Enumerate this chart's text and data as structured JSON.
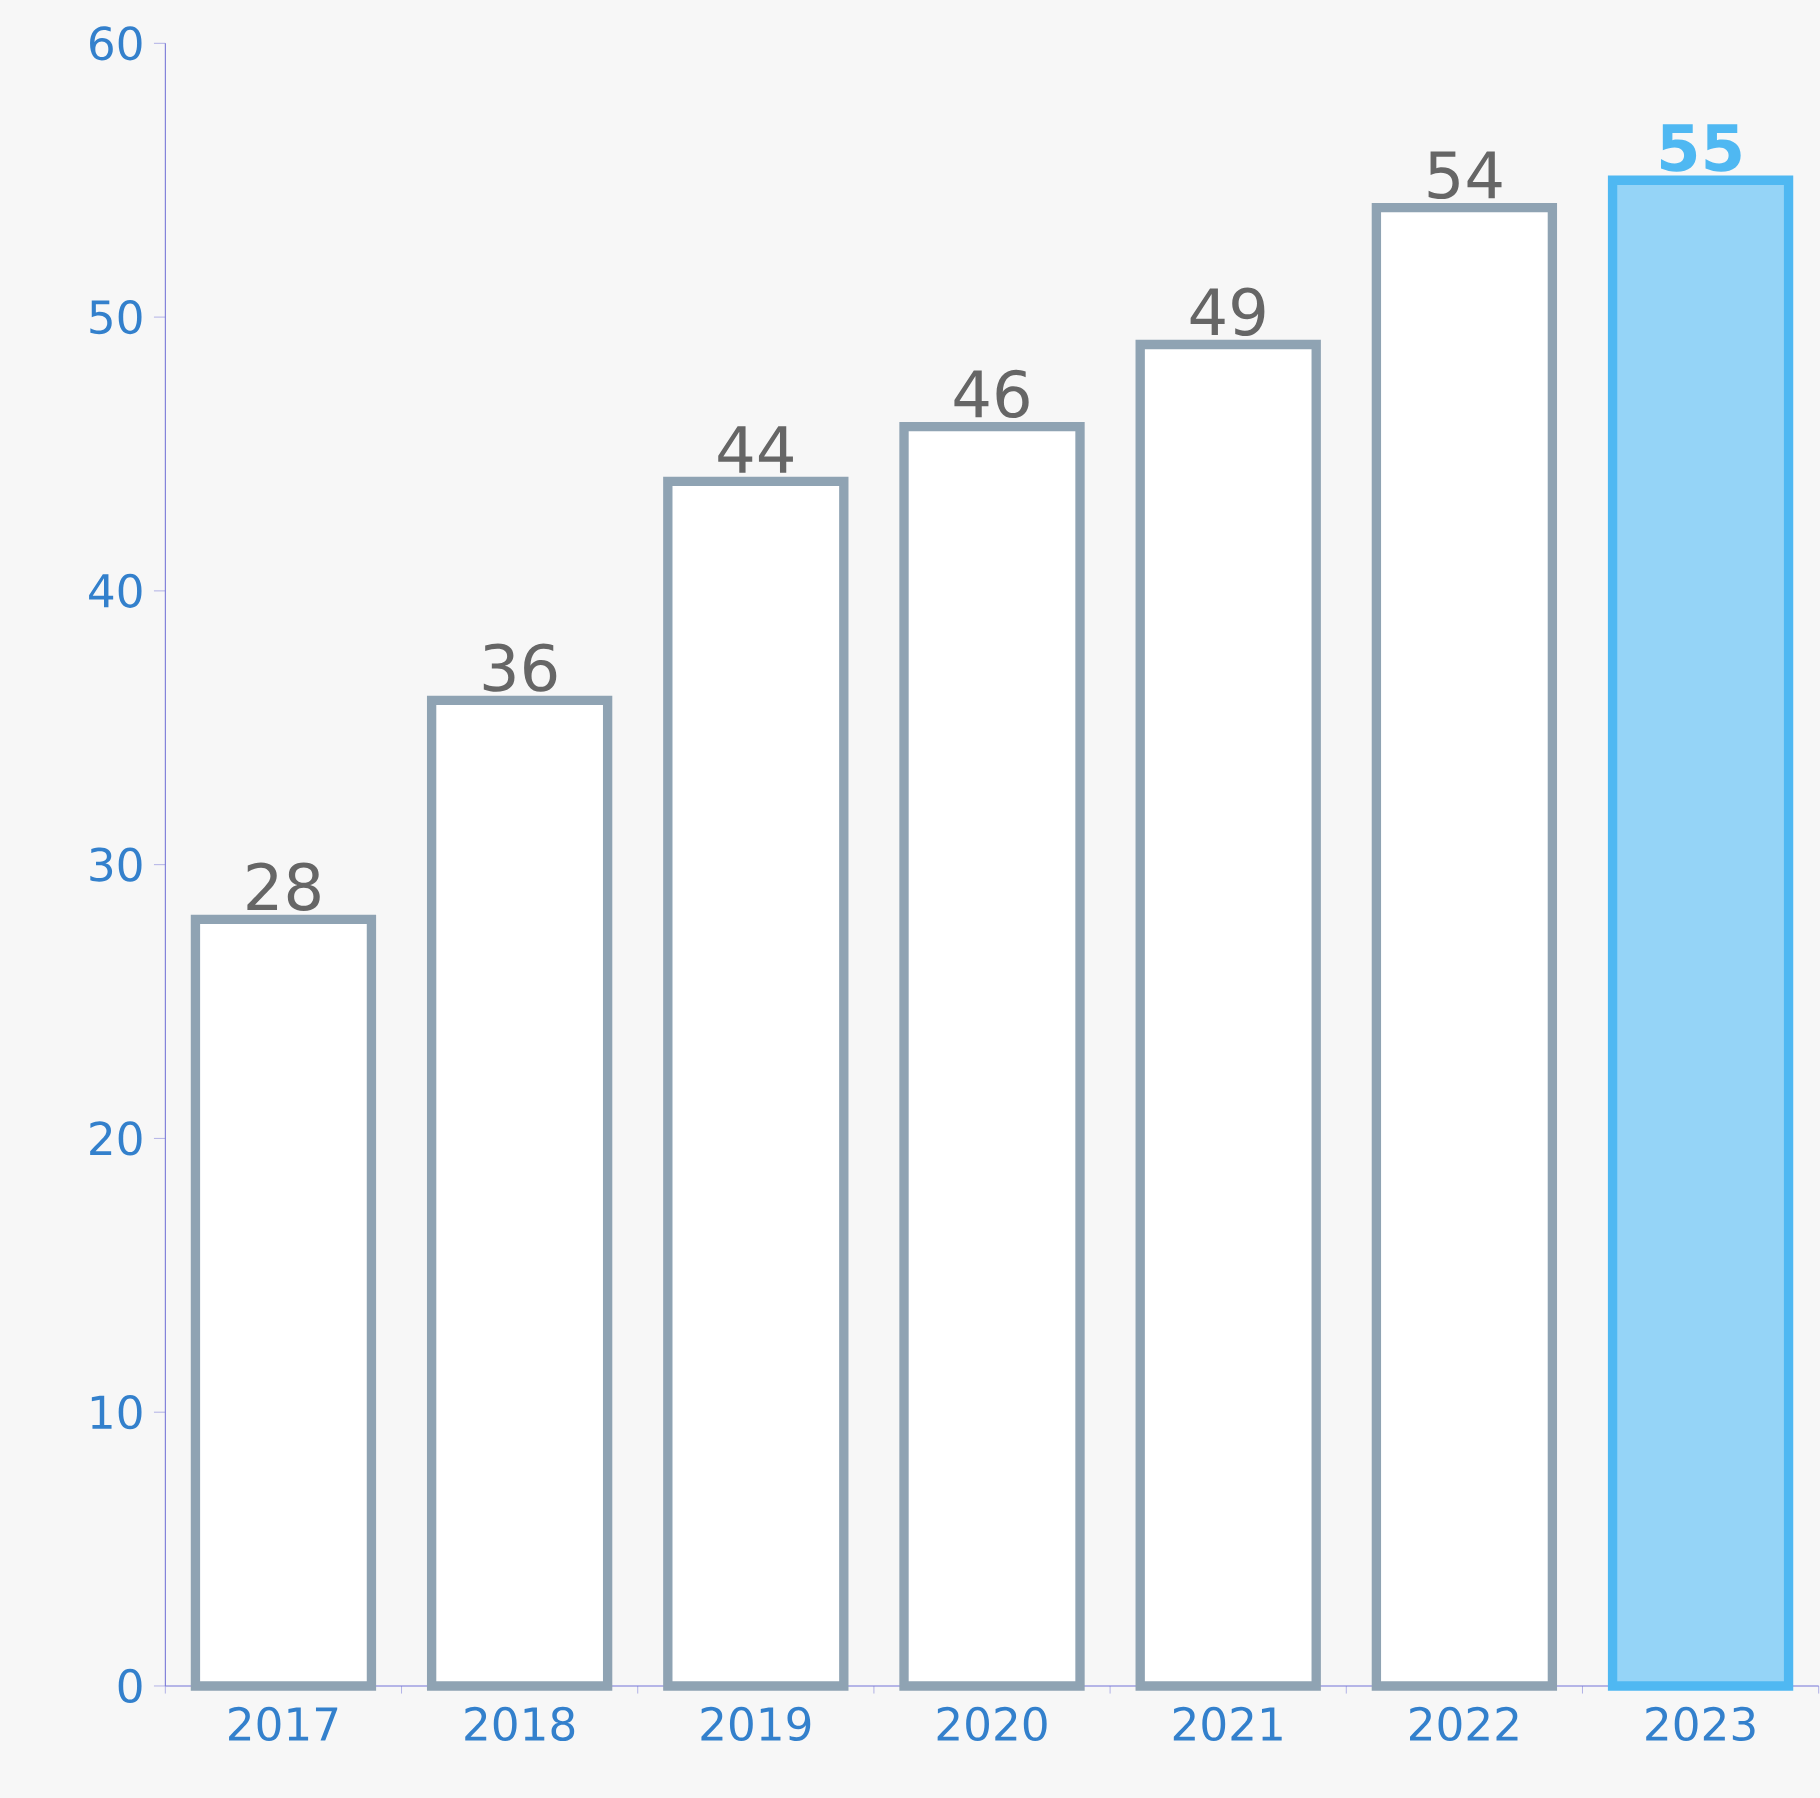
{
  "chart_data": {
    "type": "bar",
    "categories": [
      "2017",
      "2018",
      "2019",
      "2020",
      "2021",
      "2022",
      "2023"
    ],
    "values": [
      28,
      36,
      44,
      46,
      49,
      54,
      55
    ],
    "colors": [
      "#8fa3b3",
      "#8fa3b3",
      "#8fa3b3",
      "#8fa3b3",
      "#8fa3b3",
      "#8fa3b3",
      "#4fb8f2"
    ],
    "ylim": [
      0,
      60
    ],
    "yticks": [
      0,
      10,
      20,
      30,
      40,
      50,
      60
    ],
    "data_labels": true
  }
}
